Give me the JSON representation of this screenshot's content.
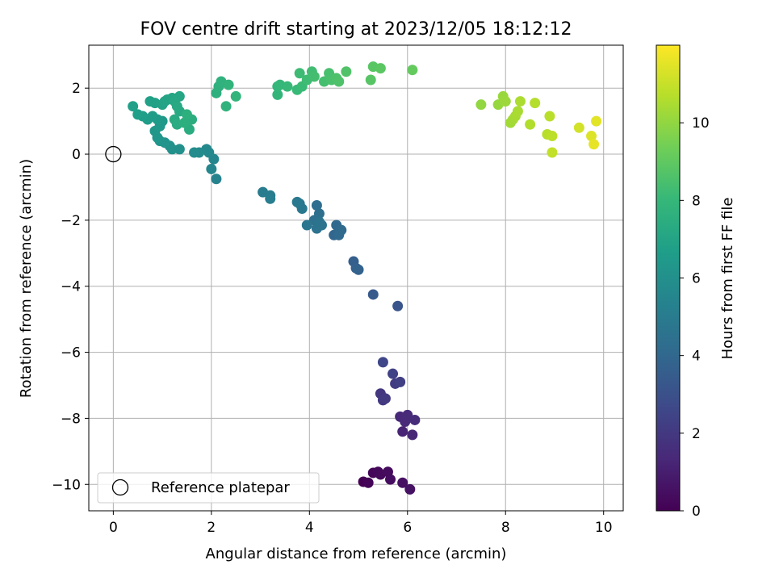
{
  "chart_data": {
    "type": "scatter",
    "title": "FOV centre drift starting at 2023/12/05 18:12:12",
    "xlabel": "Angular distance from reference (arcmin)",
    "ylabel": "Rotation from reference (arcmin)",
    "xlim": [
      -0.5,
      10.4
    ],
    "ylim": [
      -10.8,
      3.3
    ],
    "xticks": [
      0,
      2,
      4,
      6,
      8,
      10
    ],
    "yticks": [
      -10,
      -8,
      -6,
      -4,
      -2,
      0,
      2
    ],
    "grid": true,
    "legend": {
      "placement": "lower-left",
      "entries": [
        "Reference platepar"
      ]
    },
    "colorbar": {
      "label": "Hours from first FF file",
      "range": [
        0,
        12
      ],
      "ticks": [
        0,
        2,
        4,
        6,
        8,
        10
      ],
      "colormap": [
        "#440154",
        "#482878",
        "#3e4989",
        "#31688e",
        "#26828e",
        "#1f9e89",
        "#35b779",
        "#6ece58",
        "#b5de2b",
        "#fde725"
      ]
    },
    "reference_point": {
      "x": 0,
      "y": 0,
      "name": "Reference platepar"
    },
    "series": [
      {
        "points": [
          [
            5.1,
            -9.92,
            0.0
          ],
          [
            5.2,
            -9.95,
            0.1
          ],
          [
            5.3,
            -9.65,
            0.2
          ],
          [
            5.4,
            -9.62,
            0.25
          ],
          [
            5.45,
            -9.7,
            0.3
          ],
          [
            5.6,
            -9.62,
            0.35
          ],
          [
            5.65,
            -9.85,
            0.4
          ],
          [
            5.9,
            -9.95,
            0.5
          ],
          [
            6.05,
            -10.15,
            0.6
          ],
          [
            5.9,
            -8.4,
            1.2
          ],
          [
            6.1,
            -8.5,
            1.3
          ],
          [
            5.85,
            -7.95,
            1.35
          ],
          [
            5.95,
            -8.1,
            1.4
          ],
          [
            6.0,
            -7.9,
            1.45
          ],
          [
            6.15,
            -8.05,
            1.5
          ],
          [
            5.45,
            -7.25,
            1.9
          ],
          [
            5.5,
            -7.45,
            2.0
          ],
          [
            5.55,
            -7.4,
            2.05
          ],
          [
            5.75,
            -6.95,
            2.2
          ],
          [
            5.85,
            -6.9,
            2.3
          ],
          [
            5.7,
            -6.65,
            2.4
          ],
          [
            5.5,
            -6.3,
            2.6
          ],
          [
            5.8,
            -4.6,
            3.2
          ],
          [
            5.3,
            -4.25,
            3.4
          ],
          [
            4.9,
            -3.25,
            3.6
          ],
          [
            4.95,
            -3.45,
            3.7
          ],
          [
            5.0,
            -3.5,
            3.75
          ],
          [
            4.5,
            -2.45,
            3.9
          ],
          [
            4.6,
            -2.3,
            4.0
          ],
          [
            4.55,
            -2.15,
            4.05
          ],
          [
            4.6,
            -2.45,
            4.1
          ],
          [
            4.65,
            -2.3,
            4.15
          ],
          [
            4.15,
            -1.55,
            4.3
          ],
          [
            4.2,
            -1.8,
            4.35
          ],
          [
            4.1,
            -2.0,
            4.4
          ],
          [
            4.15,
            -2.25,
            4.5
          ],
          [
            4.2,
            -2.05,
            4.55
          ],
          [
            4.25,
            -2.15,
            4.6
          ],
          [
            3.95,
            -2.15,
            4.7
          ],
          [
            3.8,
            -1.5,
            4.75
          ],
          [
            3.85,
            -1.65,
            4.8
          ],
          [
            3.75,
            -1.45,
            4.85
          ],
          [
            3.2,
            -1.25,
            5.0
          ],
          [
            3.05,
            -1.15,
            5.05
          ],
          [
            3.2,
            -1.35,
            5.1
          ],
          [
            2.1,
            -0.75,
            5.4
          ],
          [
            2.0,
            -0.45,
            5.5
          ],
          [
            2.05,
            -0.15,
            5.55
          ],
          [
            1.95,
            0.05,
            5.6
          ],
          [
            1.9,
            0.15,
            5.65
          ],
          [
            1.75,
            0.05,
            5.75
          ],
          [
            1.65,
            0.05,
            5.8
          ],
          [
            1.35,
            0.15,
            6.0
          ],
          [
            1.2,
            0.15,
            6.05
          ],
          [
            1.15,
            0.25,
            6.1
          ],
          [
            1.05,
            0.35,
            6.2
          ],
          [
            0.95,
            0.4,
            6.25
          ],
          [
            0.9,
            0.5,
            6.3
          ],
          [
            0.85,
            0.7,
            6.35
          ],
          [
            0.95,
            0.85,
            6.4
          ],
          [
            1.0,
            1.0,
            6.45
          ],
          [
            0.9,
            1.05,
            6.5
          ],
          [
            0.8,
            1.15,
            6.55
          ],
          [
            0.7,
            1.05,
            6.6
          ],
          [
            0.6,
            1.15,
            6.65
          ],
          [
            0.5,
            1.2,
            6.7
          ],
          [
            0.4,
            1.45,
            6.75
          ],
          [
            0.75,
            1.6,
            6.8
          ],
          [
            0.85,
            1.55,
            6.85
          ],
          [
            1.0,
            1.5,
            6.9
          ],
          [
            1.05,
            1.6,
            6.95
          ],
          [
            1.1,
            1.65,
            7.0
          ],
          [
            1.2,
            1.7,
            7.05
          ],
          [
            1.35,
            1.75,
            7.1
          ],
          [
            1.25,
            1.6,
            7.15
          ],
          [
            1.3,
            1.45,
            7.2
          ],
          [
            1.35,
            1.3,
            7.25
          ],
          [
            1.25,
            1.05,
            7.3
          ],
          [
            1.3,
            0.9,
            7.35
          ],
          [
            1.55,
            0.75,
            7.4
          ],
          [
            1.6,
            1.05,
            7.45
          ],
          [
            1.45,
            0.95,
            7.5
          ],
          [
            1.5,
            1.2,
            7.55
          ],
          [
            2.1,
            1.85,
            7.6
          ],
          [
            2.15,
            2.05,
            7.65
          ],
          [
            2.2,
            2.2,
            7.7
          ],
          [
            2.3,
            1.45,
            7.75
          ],
          [
            2.35,
            2.1,
            7.8
          ],
          [
            2.5,
            1.75,
            7.85
          ],
          [
            3.35,
            1.8,
            7.9
          ],
          [
            3.35,
            2.05,
            7.95
          ],
          [
            3.4,
            2.1,
            8.0
          ],
          [
            3.55,
            2.05,
            8.05
          ],
          [
            3.75,
            1.95,
            8.1
          ],
          [
            3.85,
            2.05,
            8.15
          ],
          [
            3.8,
            2.45,
            8.2
          ],
          [
            3.95,
            2.25,
            8.25
          ],
          [
            4.05,
            2.5,
            8.3
          ],
          [
            4.1,
            2.35,
            8.35
          ],
          [
            4.3,
            2.2,
            8.4
          ],
          [
            4.4,
            2.45,
            8.45
          ],
          [
            4.45,
            2.25,
            8.5
          ],
          [
            4.55,
            2.3,
            8.55
          ],
          [
            4.6,
            2.2,
            8.6
          ],
          [
            4.75,
            2.5,
            8.65
          ],
          [
            5.25,
            2.25,
            8.8
          ],
          [
            5.3,
            2.65,
            8.85
          ],
          [
            5.45,
            2.6,
            8.9
          ],
          [
            6.1,
            2.55,
            9.1
          ],
          [
            7.5,
            1.5,
            10.0
          ],
          [
            7.85,
            1.5,
            10.1
          ],
          [
            7.95,
            1.75,
            10.15
          ],
          [
            8.0,
            1.6,
            10.2
          ],
          [
            8.1,
            0.95,
            10.3
          ],
          [
            8.15,
            1.05,
            10.35
          ],
          [
            8.2,
            1.15,
            10.4
          ],
          [
            8.25,
            1.3,
            10.45
          ],
          [
            8.3,
            1.6,
            10.5
          ],
          [
            8.5,
            0.9,
            10.6
          ],
          [
            8.6,
            1.55,
            10.65
          ],
          [
            8.85,
            0.6,
            10.7
          ],
          [
            8.9,
            1.15,
            10.75
          ],
          [
            8.95,
            0.55,
            10.8
          ],
          [
            8.95,
            0.05,
            10.9
          ],
          [
            9.5,
            0.8,
            11.2
          ],
          [
            9.75,
            0.55,
            11.4
          ],
          [
            9.85,
            1.0,
            11.5
          ],
          [
            9.8,
            0.3,
            11.6
          ]
        ]
      }
    ]
  }
}
